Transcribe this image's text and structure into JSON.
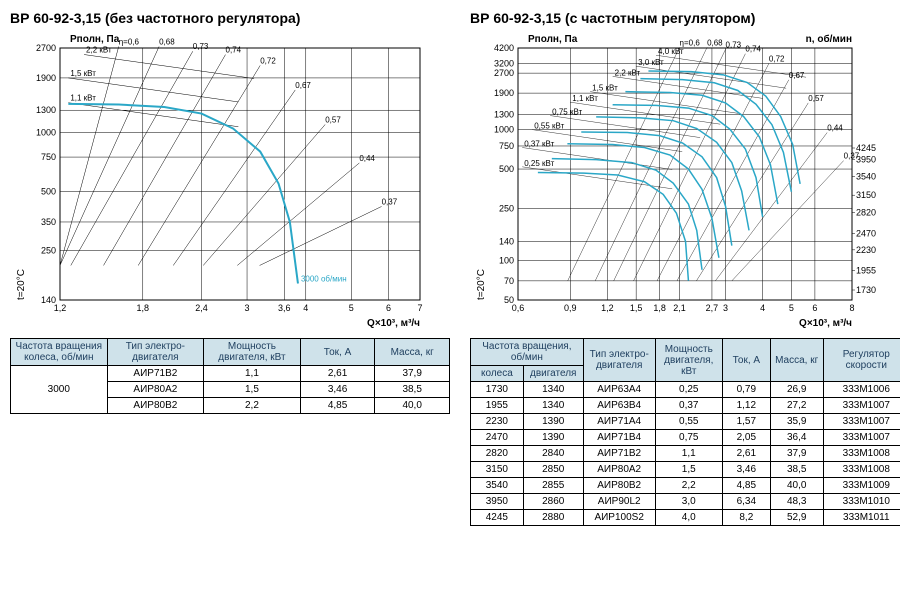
{
  "left": {
    "title": "ВР 60-92-3,15 (без частотного регулятора)",
    "chart": {
      "type": "fan-curve",
      "ylabel": "Pполн, Па",
      "xlabel": "Q×10³, м³/ч",
      "temp_label": "t=20°C",
      "x_ticks": [
        1.2,
        1.8,
        2.4,
        3.0,
        3.6,
        4.0,
        5.0,
        6.0,
        7.0
      ],
      "y_ticks": [
        140,
        250,
        350,
        500,
        750,
        1000,
        1300,
        1900,
        2700
      ],
      "grid_color": "#000000",
      "curve_color": "#2aa7c7",
      "label_fontsize": 10,
      "tick_fontsize": 9,
      "anno_fontsize": 8,
      "line_width_grid": 0.5,
      "line_width_curve": 2,
      "curve_points": [
        [
          1.25,
          1400
        ],
        [
          1.6,
          1390
        ],
        [
          2.0,
          1350
        ],
        [
          2.4,
          1250
        ],
        [
          2.8,
          1050
        ],
        [
          3.2,
          800
        ],
        [
          3.5,
          550
        ],
        [
          3.7,
          350
        ],
        [
          3.85,
          170
        ]
      ],
      "rpm_label": "3000 об/мин",
      "power_lines": [
        {
          "label": "1,1 кВт",
          "x": 1.25,
          "y": 1420
        },
        {
          "label": "1,5 кВт",
          "x": 1.25,
          "y": 1900
        },
        {
          "label": "2,2 кВт",
          "x": 1.35,
          "y": 2500
        }
      ],
      "eff_lines": [
        {
          "label": "η=0,6",
          "x": 1.6,
          "y": 2750
        },
        {
          "label": "0,68",
          "x": 1.95,
          "y": 2750
        },
        {
          "label": "0,73",
          "x": 2.3,
          "y": 2600
        },
        {
          "label": "0,74",
          "x": 2.7,
          "y": 2500
        },
        {
          "label": "0,72",
          "x": 3.2,
          "y": 2200
        },
        {
          "label": "0,67",
          "x": 3.8,
          "y": 1650
        },
        {
          "label": "0,57",
          "x": 4.4,
          "y": 1100
        },
        {
          "label": "0,44",
          "x": 5.2,
          "y": 700
        },
        {
          "label": "0,37",
          "x": 5.8,
          "y": 420
        }
      ]
    },
    "table": {
      "columns": [
        "Частота вращения колеса, об/мин",
        "Тип электро-двигателя",
        "Мощность двигателя, кВт",
        "Ток, А",
        "Масса, кг"
      ],
      "col_widths": [
        "22%",
        "22%",
        "22%",
        "17%",
        "17%"
      ],
      "rpm": "3000",
      "rows": [
        [
          "АИР71В2",
          "1,1",
          "2,61",
          "37,9"
        ],
        [
          "АИР80А2",
          "1,5",
          "3,46",
          "38,5"
        ],
        [
          "АИР80В2",
          "2,2",
          "4,85",
          "40,0"
        ]
      ]
    }
  },
  "right": {
    "title": "ВР 60-92-3,15 (с частотным регулятором)",
    "chart": {
      "type": "fan-curve",
      "ylabel": "Pполн, Па",
      "xlabel": "Q×10³, м³/ч",
      "nlabel": "n, об/мин",
      "temp_label": "t=20°C",
      "x_ticks": [
        0.6,
        0.9,
        1.2,
        1.5,
        1.8,
        2.1,
        2.7,
        3.0,
        4.0,
        5.0,
        6.0,
        8.0
      ],
      "y_ticks": [
        50,
        70,
        100,
        140,
        250,
        500,
        750,
        1000,
        1300,
        1900,
        2700,
        3200,
        4200
      ],
      "n_ticks": [
        1730,
        1955,
        2230,
        2470,
        2820,
        3150,
        3540,
        3950,
        4245
      ],
      "grid_color": "#000000",
      "curve_color": "#2aa7c7",
      "label_fontsize": 10,
      "tick_fontsize": 9,
      "anno_fontsize": 8,
      "line_width_grid": 0.5,
      "line_width_curve": 1.5,
      "curves": [
        [
          [
            0.7,
            470
          ],
          [
            1.0,
            465
          ],
          [
            1.3,
            450
          ],
          [
            1.6,
            400
          ],
          [
            1.85,
            320
          ],
          [
            2.05,
            230
          ],
          [
            2.2,
            140
          ],
          [
            2.25,
            70
          ]
        ],
        [
          [
            0.78,
            600
          ],
          [
            1.1,
            590
          ],
          [
            1.45,
            560
          ],
          [
            1.75,
            490
          ],
          [
            2.0,
            390
          ],
          [
            2.25,
            270
          ],
          [
            2.4,
            170
          ],
          [
            2.5,
            85
          ]
        ],
        [
          [
            0.88,
            780
          ],
          [
            1.25,
            770
          ],
          [
            1.6,
            730
          ],
          [
            1.95,
            640
          ],
          [
            2.25,
            500
          ],
          [
            2.5,
            350
          ],
          [
            2.7,
            210
          ],
          [
            2.85,
            105
          ]
        ],
        [
          [
            0.98,
            960
          ],
          [
            1.4,
            950
          ],
          [
            1.8,
            900
          ],
          [
            2.15,
            790
          ],
          [
            2.5,
            620
          ],
          [
            2.8,
            430
          ],
          [
            3.0,
            260
          ],
          [
            3.15,
            130
          ]
        ],
        [
          [
            1.1,
            1250
          ],
          [
            1.55,
            1230
          ],
          [
            2.0,
            1170
          ],
          [
            2.4,
            1020
          ],
          [
            2.8,
            800
          ],
          [
            3.15,
            560
          ],
          [
            3.4,
            340
          ],
          [
            3.6,
            170
          ]
        ],
        [
          [
            1.25,
            1550
          ],
          [
            1.75,
            1530
          ],
          [
            2.25,
            1460
          ],
          [
            2.7,
            1280
          ],
          [
            3.1,
            1010
          ],
          [
            3.5,
            710
          ],
          [
            3.8,
            430
          ],
          [
            4.0,
            215
          ]
        ],
        [
          [
            1.38,
            1950
          ],
          [
            1.95,
            1920
          ],
          [
            2.5,
            1830
          ],
          [
            3.0,
            1600
          ],
          [
            3.45,
            1260
          ],
          [
            3.9,
            880
          ],
          [
            4.25,
            540
          ],
          [
            4.5,
            270
          ]
        ],
        [
          [
            1.55,
            2450
          ],
          [
            2.15,
            2410
          ],
          [
            2.75,
            2280
          ],
          [
            3.3,
            1990
          ],
          [
            3.8,
            1560
          ],
          [
            4.3,
            1090
          ],
          [
            4.7,
            670
          ],
          [
            5.0,
            335
          ]
        ],
        [
          [
            1.65,
            2800
          ],
          [
            2.3,
            2770
          ],
          [
            2.95,
            2620
          ],
          [
            3.55,
            2290
          ],
          [
            4.1,
            1800
          ],
          [
            4.6,
            1260
          ],
          [
            5.05,
            770
          ],
          [
            5.35,
            385
          ]
        ]
      ],
      "power_lines": [
        {
          "label": "0,25 кВт",
          "x": 0.62,
          "y": 520
        },
        {
          "label": "0,37 кВт",
          "x": 0.62,
          "y": 730
        },
        {
          "label": "0,55 кВт",
          "x": 0.67,
          "y": 1000
        },
        {
          "label": "0,75 кВт",
          "x": 0.77,
          "y": 1280
        },
        {
          "label": "1,1 кВт",
          "x": 0.9,
          "y": 1620
        },
        {
          "label": "1,5 кВт",
          "x": 1.05,
          "y": 1950
        },
        {
          "label": "2,2 кВт",
          "x": 1.25,
          "y": 2550
        },
        {
          "label": "3,0 кВт",
          "x": 1.5,
          "y": 3050
        },
        {
          "label": "4,0 кВт",
          "x": 1.75,
          "y": 3700
        }
      ],
      "eff_lines": [
        {
          "label": "η=0,6",
          "x": 2.1,
          "y": 4250
        },
        {
          "label": "0,68",
          "x": 2.6,
          "y": 4250
        },
        {
          "label": "0,73",
          "x": 3.0,
          "y": 4100
        },
        {
          "label": "0,74",
          "x": 3.5,
          "y": 3800
        },
        {
          "label": "0,72",
          "x": 4.2,
          "y": 3200
        },
        {
          "label": "0,67",
          "x": 4.9,
          "y": 2400
        },
        {
          "label": "0,57",
          "x": 5.7,
          "y": 1600
        },
        {
          "label": "0,44",
          "x": 6.6,
          "y": 950
        },
        {
          "label": "0,37",
          "x": 7.5,
          "y": 580
        }
      ]
    },
    "table": {
      "columns": [
        "Частота вращения, об/мин",
        "",
        "Тип электро-двигателя",
        "Мощность двигателя, кВт",
        "Ток, А",
        "Масса, кг",
        "Регулятор скорости"
      ],
      "sub_columns": [
        "колеса",
        "двигателя"
      ],
      "col_widths": [
        "11%",
        "11%",
        "15%",
        "14%",
        "10%",
        "11%",
        "18%"
      ],
      "rows": [
        [
          "1730",
          "1340",
          "АИР63А4",
          "0,25",
          "0,79",
          "26,9",
          "333М1006"
        ],
        [
          "1955",
          "1340",
          "АИР63В4",
          "0,37",
          "1,12",
          "27,2",
          "333М1007"
        ],
        [
          "2230",
          "1390",
          "АИР71А4",
          "0,55",
          "1,57",
          "35,9",
          "333М1007"
        ],
        [
          "2470",
          "1390",
          "АИР71В4",
          "0,75",
          "2,05",
          "36,4",
          "333М1007"
        ],
        [
          "2820",
          "2840",
          "АИР71В2",
          "1,1",
          "2,61",
          "37,9",
          "333М1008"
        ],
        [
          "3150",
          "2850",
          "АИР80А2",
          "1,5",
          "3,46",
          "38,5",
          "333М1008"
        ],
        [
          "3540",
          "2855",
          "АИР80В2",
          "2,2",
          "4,85",
          "40,0",
          "333М1009"
        ],
        [
          "3950",
          "2860",
          "АИР90L2",
          "3,0",
          "6,34",
          "48,3",
          "333М1010"
        ],
        [
          "4245",
          "2880",
          "АИР100S2",
          "4,0",
          "8,2",
          "52,9",
          "333М1011"
        ]
      ]
    }
  }
}
